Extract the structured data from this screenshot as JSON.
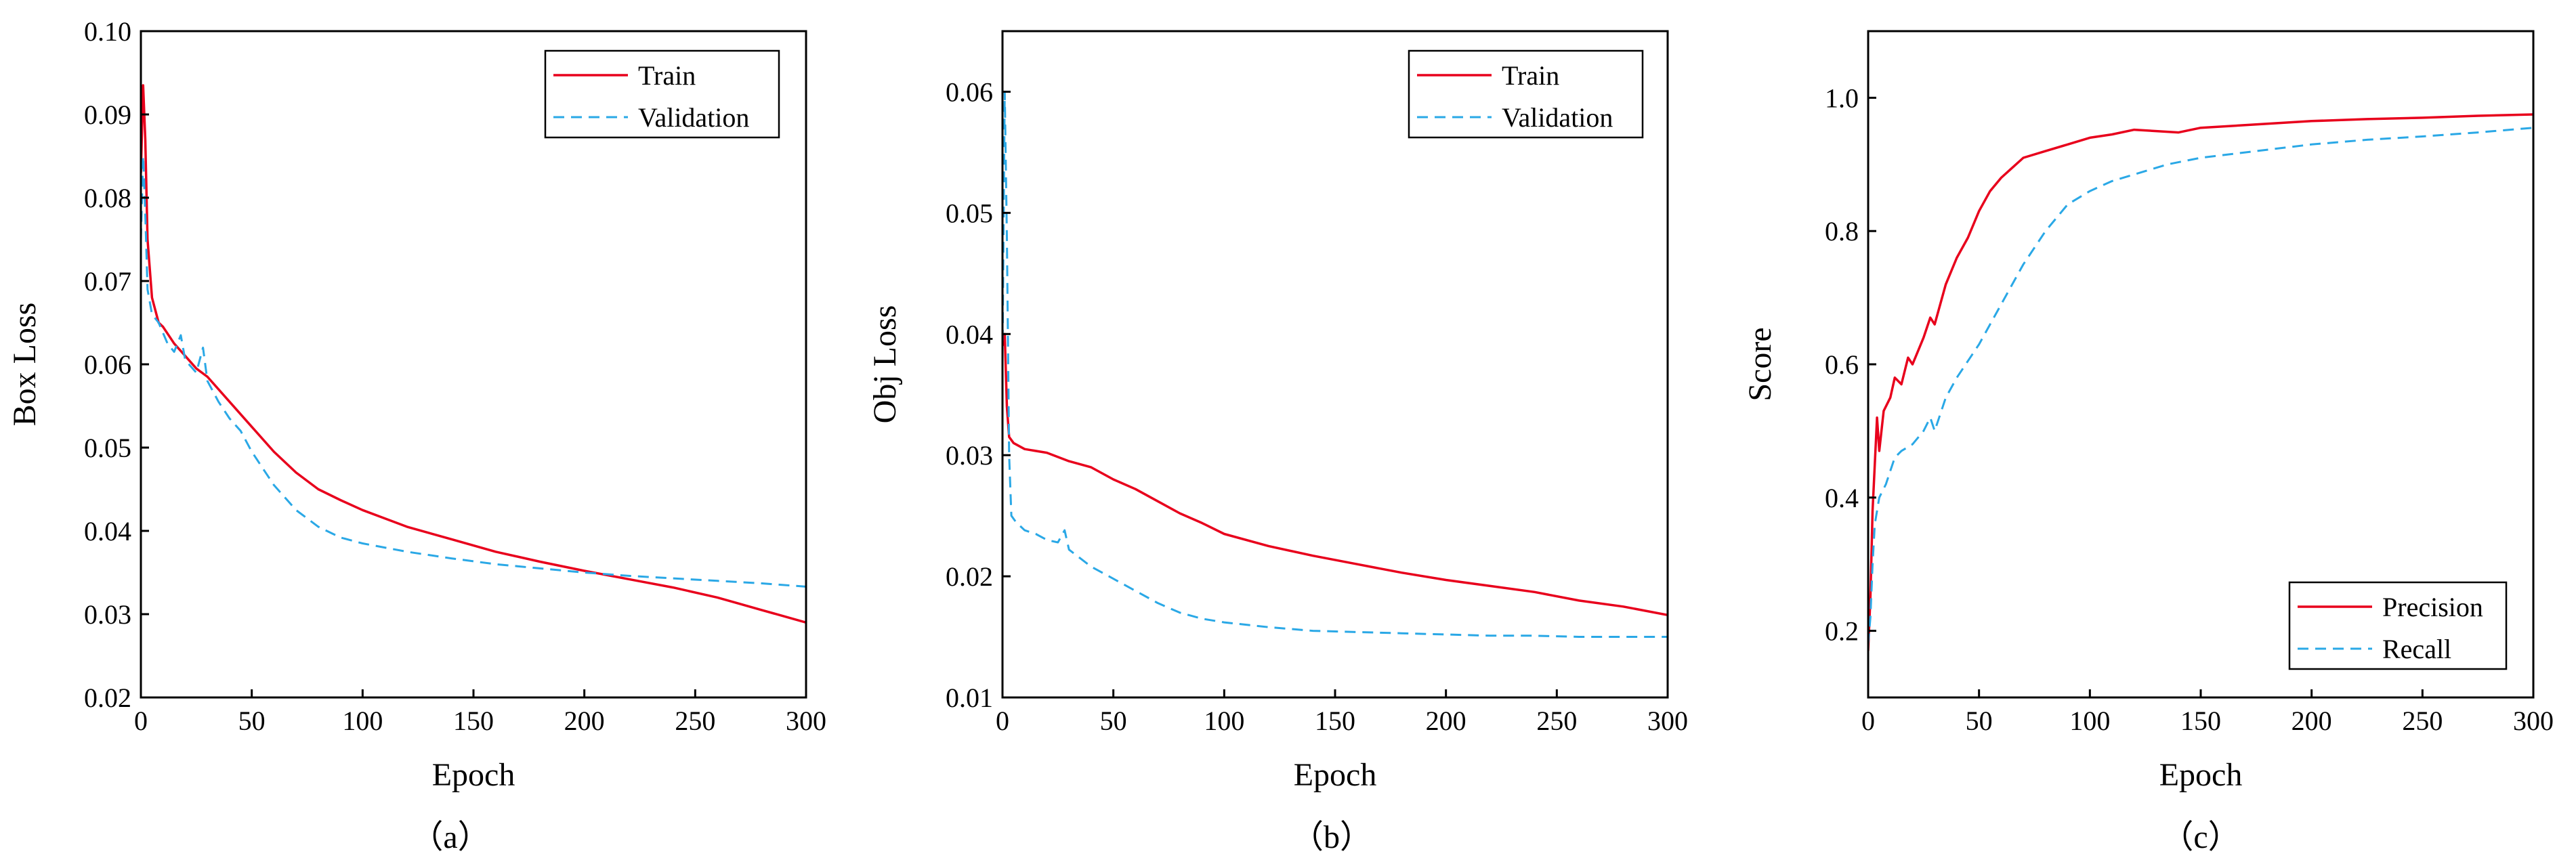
{
  "colors": {
    "train": "#e8001c",
    "validation": "#2aa8e6"
  },
  "chart_data": [
    {
      "type": "line",
      "caption": "（a）",
      "xlabel": "Epoch",
      "ylabel": "Box Loss",
      "xlim": [
        0,
        300
      ],
      "ylim": [
        0.02,
        0.1
      ],
      "xticks": [
        0,
        50,
        100,
        150,
        200,
        250,
        300
      ],
      "yticks": [
        0.02,
        0.03,
        0.04,
        0.05,
        0.06,
        0.07,
        0.08,
        0.09,
        0.1
      ],
      "ytick_labels": [
        "0.02",
        "0.03",
        "0.04",
        "0.05",
        "0.06",
        "0.07",
        "0.08",
        "0.09",
        "0.10"
      ],
      "legend_position": "top-right",
      "series": [
        {
          "name": "Train",
          "style": "solid",
          "color": "#e8001c",
          "x": [
            0,
            1,
            2,
            3,
            5,
            8,
            10,
            15,
            20,
            25,
            30,
            40,
            50,
            60,
            70,
            80,
            90,
            100,
            120,
            140,
            160,
            180,
            200,
            220,
            240,
            260,
            280,
            300
          ],
          "y": [
            0.083,
            0.0935,
            0.087,
            0.075,
            0.068,
            0.065,
            0.0645,
            0.0625,
            0.061,
            0.0595,
            0.0585,
            0.0555,
            0.0525,
            0.0495,
            0.047,
            0.045,
            0.0437,
            0.0425,
            0.0405,
            0.039,
            0.0375,
            0.0363,
            0.0352,
            0.0342,
            0.0332,
            0.032,
            0.0305,
            0.029
          ]
        },
        {
          "name": "Validation",
          "style": "dashed",
          "color": "#2aa8e6",
          "x": [
            0,
            1,
            2,
            3,
            5,
            8,
            12,
            15,
            18,
            20,
            25,
            28,
            30,
            35,
            40,
            45,
            50,
            60,
            70,
            80,
            90,
            100,
            120,
            140,
            160,
            180,
            200,
            220,
            240,
            260,
            280,
            300
          ],
          "y": [
            0.075,
            0.085,
            0.078,
            0.069,
            0.066,
            0.065,
            0.0625,
            0.0615,
            0.0635,
            0.0605,
            0.059,
            0.062,
            0.058,
            0.0555,
            0.0535,
            0.052,
            0.0495,
            0.0455,
            0.0425,
            0.0405,
            0.0392,
            0.0385,
            0.0375,
            0.0367,
            0.036,
            0.0355,
            0.035,
            0.0346,
            0.0343,
            0.034,
            0.0337,
            0.0333
          ]
        }
      ]
    },
    {
      "type": "line",
      "caption": "（b）",
      "xlabel": "Epoch",
      "ylabel": "Obj Loss",
      "xlim": [
        0,
        300
      ],
      "ylim": [
        0.01,
        0.065
      ],
      "xticks": [
        0,
        50,
        100,
        150,
        200,
        250,
        300
      ],
      "yticks": [
        0.01,
        0.02,
        0.03,
        0.04,
        0.05,
        0.06
      ],
      "ytick_labels": [
        "0.01",
        "0.02",
        "0.03",
        "0.04",
        "0.05",
        "0.06"
      ],
      "legend_position": "top-right",
      "series": [
        {
          "name": "Train",
          "style": "solid",
          "color": "#e8001c",
          "x": [
            0,
            1,
            2,
            3,
            5,
            10,
            20,
            30,
            40,
            50,
            60,
            70,
            80,
            90,
            100,
            120,
            140,
            160,
            180,
            200,
            220,
            240,
            260,
            280,
            300
          ],
          "y": [
            0.039,
            0.04,
            0.034,
            0.0315,
            0.031,
            0.0305,
            0.0302,
            0.0295,
            0.029,
            0.028,
            0.0272,
            0.0262,
            0.0252,
            0.0244,
            0.0235,
            0.0225,
            0.0217,
            0.021,
            0.0203,
            0.0197,
            0.0192,
            0.0187,
            0.018,
            0.0175,
            0.0168
          ]
        },
        {
          "name": "Validation",
          "style": "dashed",
          "color": "#2aa8e6",
          "x": [
            0,
            1,
            2,
            3,
            4,
            6,
            10,
            15,
            20,
            25,
            28,
            30,
            35,
            40,
            50,
            60,
            70,
            80,
            90,
            100,
            120,
            140,
            160,
            180,
            200,
            220,
            240,
            260,
            280,
            300
          ],
          "y": [
            0.038,
            0.06,
            0.048,
            0.03,
            0.025,
            0.0245,
            0.0238,
            0.0235,
            0.023,
            0.0228,
            0.0238,
            0.0222,
            0.0215,
            0.0208,
            0.0198,
            0.0188,
            0.0178,
            0.017,
            0.0165,
            0.0162,
            0.0158,
            0.0155,
            0.0154,
            0.0153,
            0.0152,
            0.0151,
            0.0151,
            0.015,
            0.015,
            0.015
          ]
        }
      ]
    },
    {
      "type": "line",
      "caption": "（c）",
      "xlabel": "Epoch",
      "ylabel": "Score",
      "xlim": [
        0,
        300
      ],
      "ylim": [
        0.1,
        1.1
      ],
      "xticks": [
        0,
        50,
        100,
        150,
        200,
        250,
        300
      ],
      "yticks": [
        0.2,
        0.4,
        0.6,
        0.8,
        1.0
      ],
      "ytick_labels": [
        "0.2",
        "0.4",
        "0.6",
        "0.8",
        "1.0"
      ],
      "legend_position": "bottom-right",
      "series": [
        {
          "name": "Precision",
          "style": "solid",
          "color": "#e8001c",
          "x": [
            0,
            1,
            2,
            3,
            4,
            5,
            7,
            10,
            12,
            15,
            18,
            20,
            25,
            28,
            30,
            35,
            40,
            45,
            50,
            55,
            60,
            65,
            70,
            80,
            90,
            100,
            110,
            120,
            130,
            140,
            150,
            175,
            200,
            225,
            250,
            275,
            300
          ],
          "y": [
            0.17,
            0.25,
            0.38,
            0.45,
            0.52,
            0.47,
            0.53,
            0.55,
            0.58,
            0.57,
            0.61,
            0.6,
            0.64,
            0.67,
            0.66,
            0.72,
            0.76,
            0.79,
            0.83,
            0.86,
            0.88,
            0.895,
            0.91,
            0.92,
            0.93,
            0.94,
            0.945,
            0.952,
            0.95,
            0.948,
            0.955,
            0.96,
            0.965,
            0.968,
            0.97,
            0.973,
            0.975
          ]
        },
        {
          "name": "Recall",
          "style": "dashed",
          "color": "#2aa8e6",
          "x": [
            0,
            1,
            2,
            3,
            5,
            8,
            10,
            12,
            15,
            20,
            25,
            28,
            30,
            35,
            40,
            50,
            60,
            70,
            80,
            90,
            100,
            110,
            120,
            135,
            150,
            175,
            200,
            225,
            250,
            275,
            300
          ],
          "y": [
            0.18,
            0.22,
            0.3,
            0.36,
            0.4,
            0.42,
            0.44,
            0.46,
            0.47,
            0.48,
            0.5,
            0.52,
            0.5,
            0.55,
            0.58,
            0.63,
            0.69,
            0.75,
            0.8,
            0.84,
            0.86,
            0.875,
            0.885,
            0.9,
            0.91,
            0.92,
            0.93,
            0.937,
            0.942,
            0.948,
            0.955
          ]
        }
      ]
    }
  ]
}
